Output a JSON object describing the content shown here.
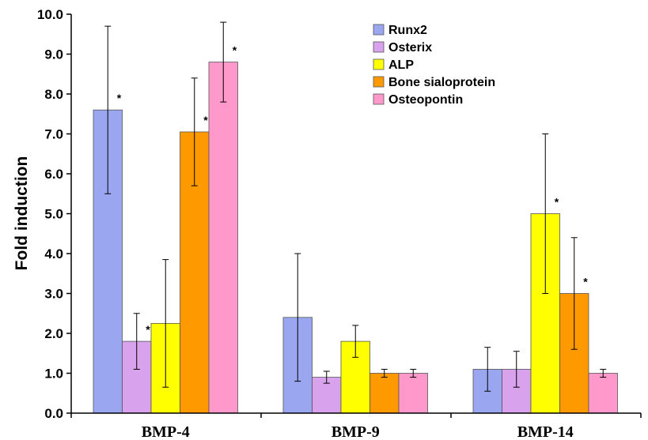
{
  "chart_data": {
    "type": "bar",
    "title": "",
    "xlabel": "",
    "ylabel": "Fold induction",
    "ylim": [
      0,
      10
    ],
    "yticks": [
      "0.0",
      "1.0",
      "2.0",
      "3.0",
      "4.0",
      "5.0",
      "6.0",
      "7.0",
      "8.0",
      "9.0",
      "10.0"
    ],
    "categories": [
      "BMP-4",
      "BMP-9",
      "BMP-14"
    ],
    "legend_position": "top-right",
    "grid": false,
    "significance_marker": "*",
    "series": [
      {
        "name": "Runx2",
        "color": "#9aa6f0",
        "values": [
          7.6,
          2.4,
          1.1
        ],
        "errors": [
          2.1,
          1.6,
          0.55
        ],
        "significant": [
          true,
          false,
          false
        ]
      },
      {
        "name": "Osterix",
        "color": "#d8a2ec",
        "values": [
          1.8,
          0.9,
          1.1
        ],
        "errors": [
          0.7,
          0.15,
          0.45
        ],
        "significant": [
          true,
          false,
          false
        ]
      },
      {
        "name": "ALP",
        "color": "#ffff00",
        "values": [
          2.25,
          1.8,
          5.0
        ],
        "errors": [
          1.6,
          0.4,
          2.0
        ],
        "significant": [
          false,
          false,
          true
        ]
      },
      {
        "name": "Bone sialoprotein",
        "color": "#ff9900",
        "values": [
          7.05,
          1.0,
          3.0
        ],
        "errors": [
          1.35,
          0.1,
          1.4
        ],
        "significant": [
          true,
          false,
          true
        ]
      },
      {
        "name": "Osteopontin",
        "color": "#ff99cc",
        "values": [
          8.8,
          1.0,
          1.0
        ],
        "errors": [
          1.0,
          0.1,
          0.1
        ],
        "significant": [
          true,
          false,
          false
        ]
      }
    ]
  }
}
